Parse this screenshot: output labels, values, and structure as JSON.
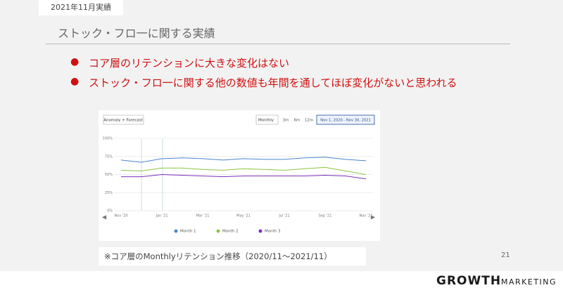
{
  "header": {
    "tag": "2021年11月実績",
    "title": "ストック・フロ一に関する実績"
  },
  "bullets": [
    "コア層のリテンションに大きな変化はない",
    "ストック・フロ一に関する他の数値も年間を通してほぼ変化がないと思われる"
  ],
  "toolbar": {
    "mode": "Anomaly + Forecast",
    "period": "Monthly",
    "ranges": [
      "3m",
      "6m",
      "12m"
    ],
    "dates": "Nov 1, 2020 - Nov 30, 2021"
  },
  "chart_data": {
    "type": "line",
    "categories": [
      "Nov '20",
      null,
      "Jan '21",
      null,
      "Mar '21",
      null,
      "May '21",
      null,
      "Jul '21",
      null,
      "Sep '21",
      null,
      "Nov '21"
    ],
    "series": [
      {
        "name": "Month 1",
        "color": "#4a86d0",
        "values": [
          70,
          67,
          72,
          73,
          72,
          70,
          72,
          71,
          71,
          73,
          74,
          71,
          69
        ]
      },
      {
        "name": "Month 2",
        "color": "#8cc63f",
        "values": [
          56,
          55,
          59,
          59,
          57,
          56,
          58,
          57,
          56,
          58,
          60,
          55,
          50
        ]
      },
      {
        "name": "Month 3",
        "color": "#7b2fbf",
        "values": [
          47,
          47,
          50,
          49,
          48,
          47,
          48,
          48,
          48,
          48,
          49,
          48,
          44
        ]
      }
    ],
    "ylim": [
      0,
      100
    ],
    "yticks": [
      {
        "value": 0,
        "label": "0%"
      },
      {
        "value": 25,
        "label": "25%"
      },
      {
        "value": 50,
        "label": "50%"
      },
      {
        "value": 75,
        "label": "75%"
      },
      {
        "value": 100,
        "label": "100%"
      }
    ],
    "grid": true
  },
  "caption": "※コア層のMonthlyリテンション推移（2020/11～2021/11）",
  "page_number": "21",
  "logo": {
    "brand": "GROWTH",
    "sub": "MARKETING"
  }
}
